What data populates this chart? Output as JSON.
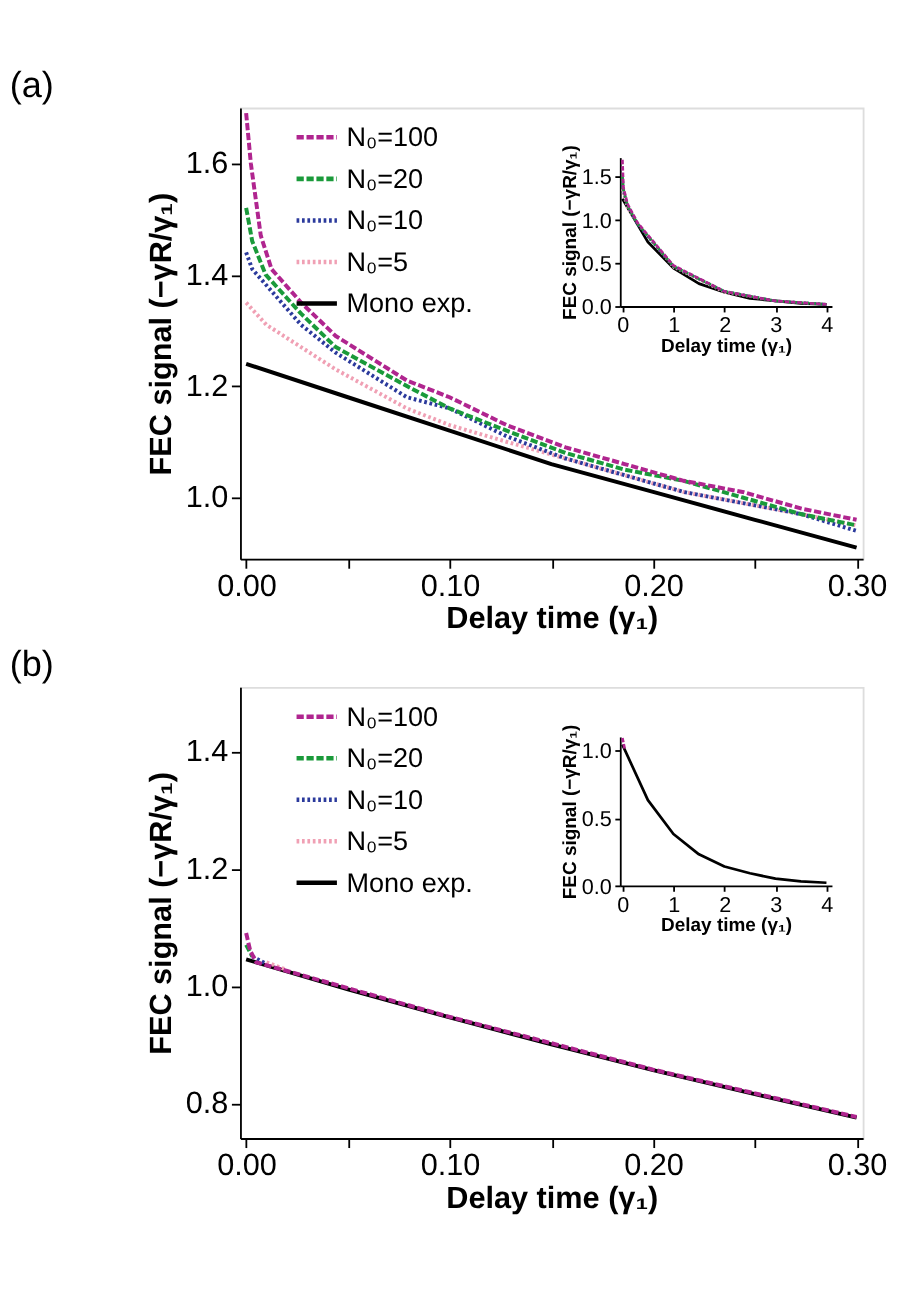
{
  "chart_data": [
    {
      "type": "line",
      "title": "(a)",
      "xlabel": "Delay time (γ₁)",
      "ylabel": "FEC signal (−γR/γ₁)",
      "legend": "top left",
      "xlim": [
        -0.003,
        0.303
      ],
      "ylim": [
        0.89,
        1.7
      ],
      "xticks": [
        {
          "value": 0,
          "label": "0.00"
        },
        {
          "value": 0.05,
          "label": null
        },
        {
          "value": 0.1,
          "label": "0.10"
        },
        {
          "value": 0.15,
          "label": null
        },
        {
          "value": 0.2,
          "label": "0.20"
        },
        {
          "value": 0.25,
          "label": null
        },
        {
          "value": 0.3,
          "label": "0.30"
        }
      ],
      "yticks": [
        {
          "value": 1,
          "label": "1.0"
        },
        1.2,
        1.4,
        1.6
      ],
      "series": [
        {
          "name": "N₀=100",
          "color": "#b0258f",
          "line_style": "dashed",
          "x": [
            0,
            0.0023,
            0.0072,
            0.0125,
            0.027,
            0.044,
            0.079,
            0.1,
            0.128,
            0.157,
            0.186,
            0.215,
            0.244,
            0.273,
            0.3
          ],
          "values": [
            1.69,
            1.6,
            1.47,
            1.41,
            1.35,
            1.29,
            1.21,
            1.18,
            1.13,
            1.09,
            1.06,
            1.03,
            1.01,
            0.98,
            0.96
          ]
        },
        {
          "name": "N₀=20",
          "color": "#1a9a3a",
          "line_style": "dashed",
          "x": [
            0,
            0.003,
            0.0096,
            0.027,
            0.044,
            0.079,
            0.1,
            0.128,
            0.157,
            0.186,
            0.215,
            0.244,
            0.273,
            0.3
          ],
          "values": [
            1.52,
            1.46,
            1.4,
            1.33,
            1.27,
            1.2,
            1.16,
            1.12,
            1.08,
            1.05,
            1.03,
            1.0,
            0.97,
            0.95
          ]
        },
        {
          "name": "N₀=10",
          "color": "#2b3a9c",
          "line_style": "dotted",
          "x": [
            0,
            0.003,
            0.027,
            0.044,
            0.079,
            0.1,
            0.128,
            0.157,
            0.186,
            0.215,
            0.244,
            0.273,
            0.3
          ],
          "values": [
            1.44,
            1.41,
            1.31,
            1.26,
            1.18,
            1.16,
            1.11,
            1.07,
            1.04,
            1.01,
            0.99,
            0.97,
            0.94
          ]
        },
        {
          "name": "N₀=5",
          "color": "#f0a0b4",
          "line_style": "dotted",
          "x": [
            0,
            0.01,
            0.027,
            0.044,
            0.079,
            0.1,
            0.128,
            0.157,
            0.186,
            0.215,
            0.244,
            0.273,
            0.3
          ],
          "values": [
            1.35,
            1.31,
            1.27,
            1.23,
            1.16,
            1.13,
            1.1,
            1.07,
            1.04,
            1.01,
            0.99,
            0.97,
            0.95
          ]
        },
        {
          "name": "Mono exp.",
          "color": "#000000",
          "line_style": "solid",
          "x": [
            0,
            0.05,
            0.1,
            0.15,
            0.2,
            0.25,
            0.3
          ],
          "values": [
            1.24,
            1.18,
            1.12,
            1.06,
            1.01,
            0.96,
            0.91
          ]
        }
      ]
    },
    {
      "type": "line",
      "xlabel": "Delay time (γ₁)",
      "ylabel": "FEC signal (−γR/γ₁)",
      "xlim": [
        -0.05,
        4.1
      ],
      "ylim": [
        0,
        1.72
      ],
      "xticks": [
        0,
        1,
        2,
        3,
        4
      ],
      "yticks": [
        {
          "value": 0,
          "label": "0.0"
        },
        {
          "value": 0.5,
          "label": "0.5"
        },
        {
          "value": 1,
          "label": "1.0"
        },
        {
          "value": 1.5,
          "label": "1.5"
        }
      ],
      "series": [
        {
          "color": "#b0258f",
          "line_style": "dashed",
          "x": [
            0,
            0.02,
            0.1,
            0.3,
            1,
            2,
            3,
            4
          ],
          "values": [
            1.69,
            1.37,
            1.18,
            0.96,
            0.47,
            0.17,
            0.06,
            0.02
          ]
        },
        {
          "color": "#1a9a3a",
          "line_style": "dashed",
          "x": [
            0,
            0.02,
            0.1,
            0.3,
            1,
            2,
            3,
            4
          ],
          "values": [
            1.52,
            1.35,
            1.16,
            0.95,
            0.46,
            0.17,
            0.06,
            0.02
          ]
        },
        {
          "color": "#2b3a9c",
          "line_style": "dotted",
          "x": [
            0,
            0.02,
            0.1,
            0.3,
            1,
            2,
            3,
            4
          ],
          "values": [
            1.44,
            1.33,
            1.16,
            0.94,
            0.46,
            0.17,
            0.06,
            0.02
          ]
        },
        {
          "color": "#f0a0b4",
          "line_style": "dotted",
          "x": [
            0,
            0.02,
            0.1,
            0.3,
            1,
            2,
            3,
            4
          ],
          "values": [
            1.35,
            1.29,
            1.13,
            0.95,
            0.45,
            0.16,
            0.06,
            0.02
          ]
        },
        {
          "color": "#000000",
          "line_style": "solid",
          "x": [
            0,
            0.5,
            1,
            1.5,
            2,
            2.5,
            3,
            3.5,
            4
          ],
          "values": [
            1.24,
            0.74,
            0.44,
            0.26,
            0.16,
            0.09,
            0.06,
            0.03,
            0.02
          ]
        }
      ]
    },
    {
      "type": "line",
      "title": "(b)",
      "xlabel": "Delay time (γ₁)",
      "ylabel": "FEC signal (−γR/γ₁)",
      "legend": "top left",
      "xlim": [
        -0.003,
        0.303
      ],
      "ylim": [
        0.74,
        1.51
      ],
      "xticks": [
        {
          "value": 0,
          "label": "0.00"
        },
        {
          "value": 0.05,
          "label": null
        },
        {
          "value": 0.1,
          "label": "0.10"
        },
        {
          "value": 0.15,
          "label": null
        },
        {
          "value": 0.2,
          "label": "0.20"
        },
        {
          "value": 0.25,
          "label": null
        },
        {
          "value": 0.3,
          "label": "0.30"
        }
      ],
      "yticks": [
        0.8,
        {
          "value": 1,
          "label": "1.0"
        },
        1.2,
        1.4
      ],
      "series": [
        {
          "name": "N₀=100",
          "color": "#b0258f",
          "line_style": "dashed",
          "x": [
            0,
            0.002,
            0.005,
            0.1,
            0.2,
            0.3
          ],
          "values": [
            1.09,
            1.06,
            1.04,
            0.947,
            0.857,
            0.776
          ]
        },
        {
          "name": "N₀=20",
          "color": "#1a9a3a",
          "line_style": "dashed",
          "x": [
            0,
            0.003
          ],
          "values": [
            1.07,
            1.05
          ]
        },
        {
          "name": "N₀=10",
          "color": "#2b3a9c",
          "line_style": "dotted",
          "x": [
            0.003,
            0.01
          ],
          "values": [
            1.05,
            1.037
          ]
        },
        {
          "name": "N₀=5",
          "color": "#f0a0b4",
          "line_style": "dotted",
          "x": [
            0.01,
            0.02
          ],
          "values": [
            1.04,
            1.027
          ]
        },
        {
          "name": "Mono exp.",
          "color": "#000000",
          "line_style": "solid",
          "x": [
            0,
            0.05,
            0.1,
            0.15,
            0.2,
            0.25,
            0.3
          ],
          "values": [
            1.045,
            0.994,
            0.946,
            0.9,
            0.856,
            0.815,
            0.775
          ]
        }
      ]
    },
    {
      "type": "line",
      "xlabel": "Delay time (γ₁)",
      "ylabel": "FEC signal (−γR/γ₁)",
      "xlim": [
        -0.05,
        4.1
      ],
      "ylim": [
        0,
        1.1
      ],
      "xticks": [
        0,
        1,
        2,
        3,
        4
      ],
      "yticks": [
        {
          "value": 0,
          "label": "0.0"
        },
        {
          "value": 0.5,
          "label": "0.5"
        },
        {
          "value": 1,
          "label": "1.0"
        }
      ],
      "series": [
        {
          "color": "#b0258f",
          "line_style": "dashed",
          "x": [
            0,
            0.05
          ],
          "values": [
            1.09,
            1.0
          ]
        },
        {
          "color": "#000000",
          "line_style": "solid",
          "x": [
            0,
            0.5,
            1,
            1.5,
            2,
            2.5,
            3,
            3.5,
            4
          ],
          "values": [
            1.04,
            0.63,
            0.38,
            0.23,
            0.14,
            0.09,
            0.05,
            0.03,
            0.02
          ]
        }
      ]
    }
  ]
}
